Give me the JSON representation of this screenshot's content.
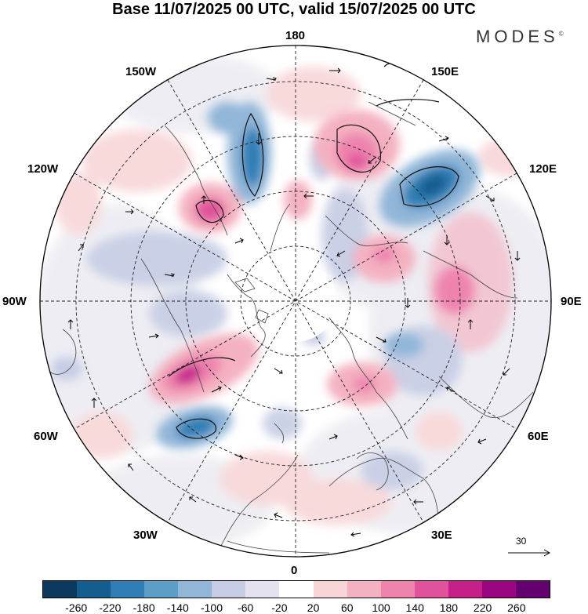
{
  "title": "Base 11/07/2025 00 UTC, valid 15/07/2025 00 UTC",
  "brand": "MODES",
  "brand_mark": "©",
  "longitude_labels": {
    "top": "180",
    "bottom": "0",
    "left": "90W",
    "right": "90E",
    "upper_left_1": "150W",
    "upper_left_2": "120W",
    "lower_left_1": "60W",
    "lower_left_2": "30W",
    "upper_right_1": "150E",
    "upper_right_2": "120E",
    "lower_right_1": "60E",
    "lower_right_2": "30E"
  },
  "reference_vector": {
    "label": "30"
  },
  "colorbar": {
    "colors": [
      "#0b3a5e",
      "#135d8f",
      "#2f7fb6",
      "#5c9ec8",
      "#91b6d8",
      "#c5cce4",
      "#e4e2ef",
      "#ffffff",
      "#f8d6d8",
      "#f4b1c1",
      "#ee84ae",
      "#e0529b",
      "#c5208a",
      "#99067f",
      "#650070"
    ],
    "ticks": [
      "-260",
      "-220",
      "-180",
      "-140",
      "-100",
      "-60",
      "-20",
      "20",
      "60",
      "100",
      "140",
      "180",
      "220",
      "260"
    ]
  },
  "anomalies": [
    {
      "name": "blue-anomaly-north-pacific",
      "value": -220,
      "color": "#2f7fb6"
    },
    {
      "name": "blue-anomaly-east-siberia",
      "value": -260,
      "color": "#135d8f"
    },
    {
      "name": "blue-anomaly-north-atlantic",
      "value": -220,
      "color": "#2f7fb6"
    },
    {
      "name": "pink-anomaly-chukotka",
      "value": 180,
      "color": "#e0529b"
    },
    {
      "name": "pink-anomaly-alaska",
      "value": 180,
      "color": "#e0529b"
    },
    {
      "name": "pink-anomaly-labrador",
      "value": 220,
      "color": "#c5208a"
    },
    {
      "name": "pink-anomaly-siberia",
      "value": 140,
      "color": "#ee84ae"
    },
    {
      "name": "pink-anomaly-scandinavia",
      "value": 100,
      "color": "#f4b1c1"
    }
  ]
}
